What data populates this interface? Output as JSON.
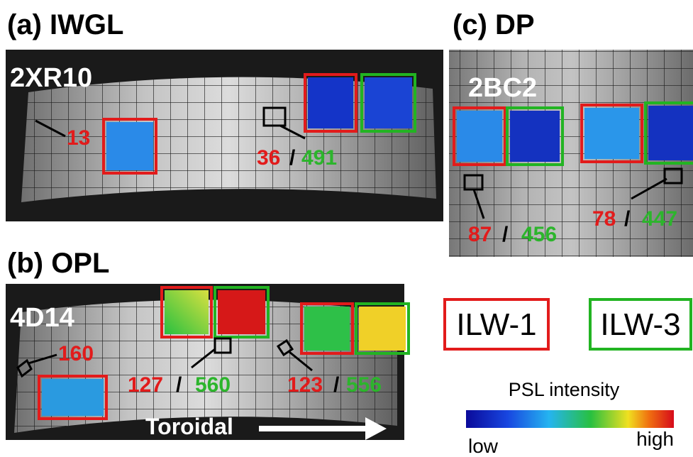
{
  "panels": [
    {
      "title": "(a) IWGL",
      "tile": "2XR10",
      "labels": [
        {
          "ilw1": "13"
        },
        {
          "ilw1": "36",
          "ilw3": "491"
        }
      ]
    },
    {
      "title": "(b) OPL",
      "tile": "4D14",
      "labels": [
        {
          "ilw1": "160"
        },
        {
          "ilw1": "127",
          "ilw3": "560"
        },
        {
          "ilw1": "123",
          "ilw3": "556"
        }
      ],
      "direction": "Toroidal"
    },
    {
      "title": "(c) DP",
      "tile": "2BC2",
      "labels": [
        {
          "ilw1": "87",
          "ilw3": "456"
        },
        {
          "ilw1": "78",
          "ilw3": "447"
        }
      ]
    }
  ],
  "separator": "/",
  "legend": {
    "ilw1": "ILW-1",
    "ilw3": "ILW-3"
  },
  "colorbar": {
    "title": "PSL intensity",
    "low": "low",
    "high": "high"
  }
}
